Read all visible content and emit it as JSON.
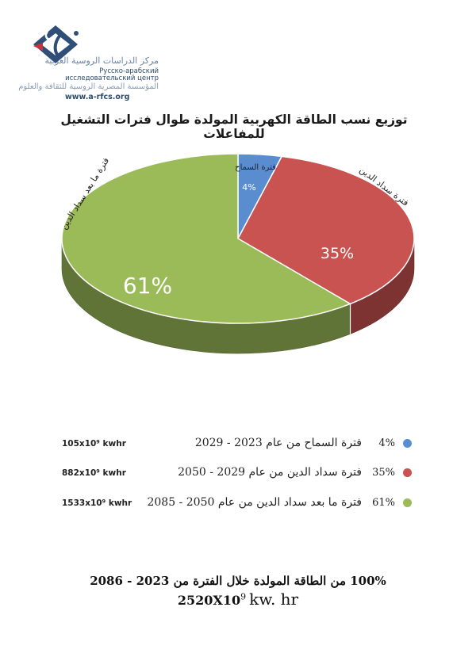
{
  "logo": {
    "line1": "مركز الدراسات الروسية العربية",
    "line2": "Русско-арабский",
    "line3": "исследовательский центр",
    "line4": "المؤسسة المصرية الروسية للثقافة والعلوم",
    "url": "www.a-rfcs.org"
  },
  "colors": {
    "grace": "#5a8dd0",
    "payback": "#c85350",
    "post": "#9bbb59"
  },
  "chart_data": {
    "type": "pie",
    "title": "توزيع نسب الطاقة الكهربية المولدة طوال فترات التشغيل للمفاعلات",
    "slices": [
      {
        "label": "فترة السماح",
        "value": 4,
        "value_label": "4%"
      },
      {
        "label": "فترة سداد الدين",
        "value": 35,
        "value_label": "35%"
      },
      {
        "label": "فترة ما بعد سداد الدين",
        "value": 61,
        "value_label": "61%"
      }
    ]
  },
  "legend": [
    {
      "pct": "4%",
      "label": "فترة السماح من عام 2023 - 2029",
      "unit": "105x10⁹ kwhr"
    },
    {
      "pct": "35%",
      "label": "فترة سداد الدين من عام 2029 - 2050",
      "unit": "882x10⁹ kwhr"
    },
    {
      "pct": "61%",
      "label": "فترة ما بعد سداد الدين من عام 2050 - 2085",
      "unit": "1533x10⁹ kwhr"
    }
  ],
  "footer": {
    "line1": "100% من الطاقة المولدة خلال الفترة من 2023 - 2086",
    "total_base": "2520X10",
    "total_exp": "9",
    "total_unit": "kw. hr"
  }
}
